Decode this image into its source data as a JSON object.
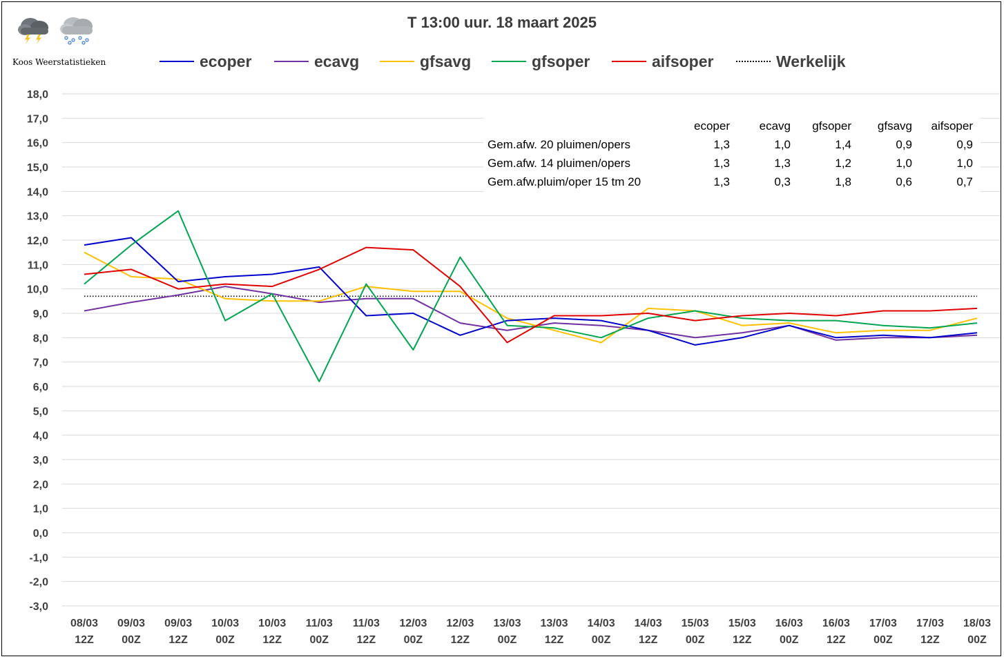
{
  "brand": "Koos Weerstatistieken",
  "icons": [
    "thunderstorm-cloud-icon",
    "snow-cloud-icon"
  ],
  "chart_data": {
    "type": "line",
    "title": "T 13:00 uur. 18 maart 2025",
    "categories": [
      [
        "08/03",
        "12Z"
      ],
      [
        "09/03",
        "00Z"
      ],
      [
        "09/03",
        "12Z"
      ],
      [
        "10/03",
        "00Z"
      ],
      [
        "10/03",
        "12Z"
      ],
      [
        "11/03",
        "00Z"
      ],
      [
        "11/03",
        "12Z"
      ],
      [
        "12/03",
        "00Z"
      ],
      [
        "12/03",
        "12Z"
      ],
      [
        "13/03",
        "00Z"
      ],
      [
        "13/03",
        "12Z"
      ],
      [
        "14/03",
        "00Z"
      ],
      [
        "14/03",
        "12Z"
      ],
      [
        "15/03",
        "00Z"
      ],
      [
        "15/03",
        "12Z"
      ],
      [
        "16/03",
        "00Z"
      ],
      [
        "16/03",
        "12Z"
      ],
      [
        "17/03",
        "00Z"
      ],
      [
        "17/03",
        "12Z"
      ],
      [
        "18/03",
        "00Z"
      ]
    ],
    "ylim": [
      -3.0,
      18.0
    ],
    "ytick_step": 1.0,
    "ytick_labels": [
      "18,0",
      "17,0",
      "16,0",
      "15,0",
      "14,0",
      "13,0",
      "12,0",
      "11,0",
      "10,0",
      "9,0",
      "8,0",
      "7,0",
      "6,0",
      "5,0",
      "4,0",
      "3,0",
      "2,0",
      "1,0",
      "0,0",
      "-1,0",
      "-2,0",
      "-3,0"
    ],
    "grid": "horizontal",
    "legend_position": "top",
    "series": [
      {
        "name": "ecoper",
        "color": "#0000cc",
        "style": "solid",
        "values": [
          11.8,
          12.1,
          10.3,
          10.5,
          10.6,
          10.9,
          8.9,
          9.0,
          8.1,
          8.7,
          8.8,
          8.7,
          8.3,
          7.7,
          8.0,
          8.5,
          8.0,
          8.1,
          8.0,
          8.2
        ]
      },
      {
        "name": "ecavg",
        "color": "#7030a0",
        "style": "solid",
        "values": [
          9.1,
          9.45,
          9.75,
          10.1,
          9.8,
          9.45,
          9.6,
          9.6,
          8.6,
          8.3,
          8.6,
          8.5,
          8.3,
          8.0,
          8.2,
          8.5,
          7.9,
          8.0,
          8.0,
          8.1
        ]
      },
      {
        "name": "gfsavg",
        "color": "#ffc000",
        "style": "solid",
        "values": [
          11.5,
          10.5,
          10.4,
          9.6,
          9.5,
          9.5,
          10.1,
          9.9,
          9.9,
          8.8,
          8.3,
          7.8,
          9.2,
          9.1,
          8.5,
          8.6,
          8.2,
          8.3,
          8.3,
          8.8
        ]
      },
      {
        "name": "gfsoper",
        "color": "#00a550",
        "style": "solid",
        "values": [
          10.2,
          11.8,
          13.2,
          8.7,
          9.8,
          6.2,
          10.2,
          7.5,
          11.3,
          8.5,
          8.4,
          8.0,
          8.8,
          9.1,
          8.8,
          8.7,
          8.7,
          8.5,
          8.4,
          8.6
        ]
      },
      {
        "name": "aifsoper",
        "color": "#e00000",
        "style": "solid",
        "values": [
          10.6,
          10.8,
          10.0,
          10.2,
          10.1,
          10.8,
          11.7,
          11.6,
          10.1,
          7.8,
          8.9,
          8.9,
          9.0,
          8.7,
          8.9,
          9.0,
          8.9,
          9.1,
          9.1,
          9.2
        ]
      },
      {
        "name": "Werkelijk",
        "color": "#000000",
        "style": "dotted",
        "values": [
          9.7,
          9.7,
          9.7,
          9.7,
          9.7,
          9.7,
          9.7,
          9.7,
          9.7,
          9.7,
          9.7,
          9.7,
          9.7,
          9.7,
          9.7,
          9.7,
          9.7,
          9.7,
          9.7,
          9.7
        ]
      }
    ],
    "stats_table": {
      "headers": [
        "ecoper",
        "ecavg",
        "gfsoper",
        "gfsavg",
        "aifsoper"
      ],
      "rows": [
        {
          "label": "Gem.afw. 20 pluimen/opers",
          "values": [
            "1,3",
            "1,0",
            "1,4",
            "0,9",
            "0,9"
          ]
        },
        {
          "label": "Gem.afw. 14 pluimen/opers",
          "values": [
            "1,3",
            "1,3",
            "1,2",
            "1,0",
            "1,0"
          ]
        },
        {
          "label": "Gem.afw.pluim/oper 15 tm 20",
          "values": [
            "1,3",
            "0,3",
            "1,8",
            "0,6",
            "0,7"
          ]
        }
      ]
    }
  }
}
